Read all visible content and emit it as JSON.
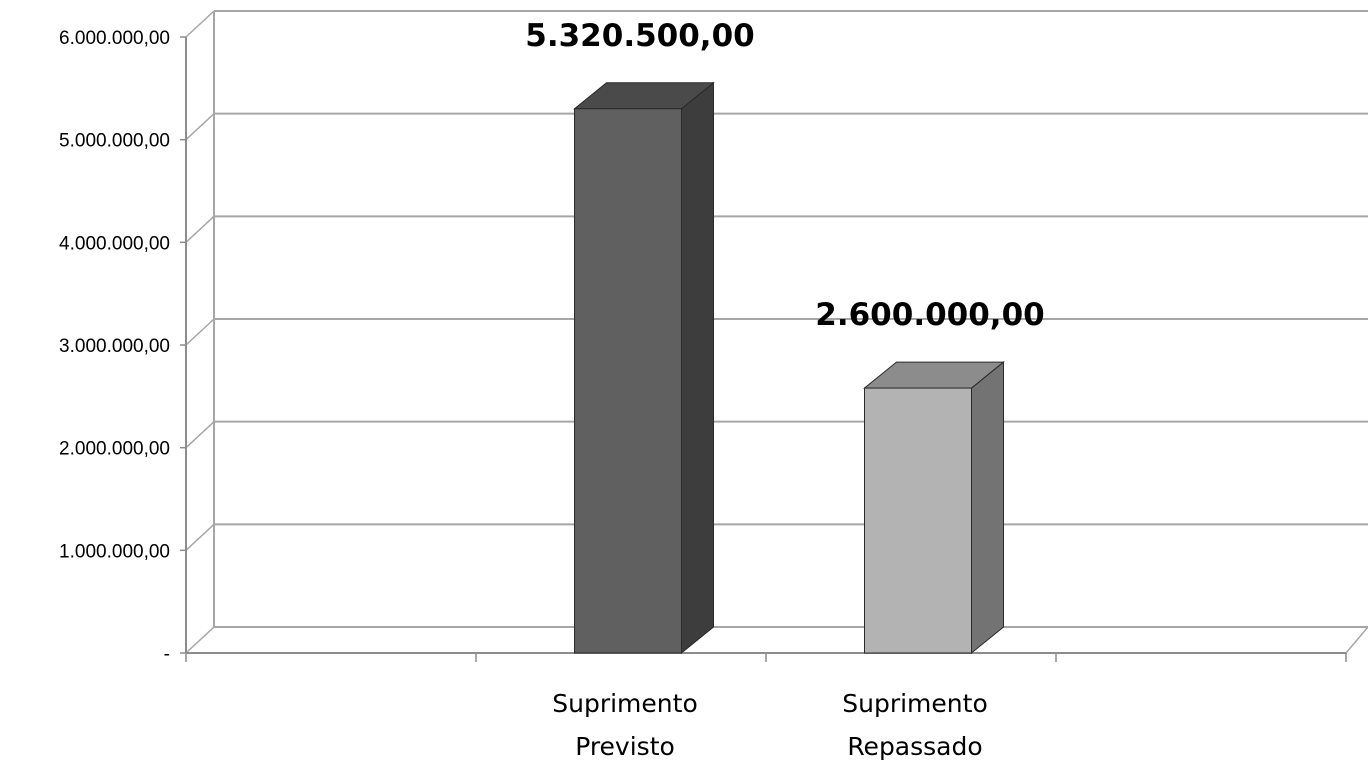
{
  "chart_data": {
    "type": "bar",
    "title": "",
    "xlabel": "",
    "ylabel": "",
    "categories": [
      [
        "Suprimento",
        "Previsto"
      ],
      [
        "Suprimento",
        "Repassado"
      ]
    ],
    "values": [
      5320500,
      2600000
    ],
    "data_labels": [
      "5.320.500,00",
      "2.600.000,00"
    ],
    "ylim": [
      0,
      6000000
    ],
    "yticks": [
      0,
      1000000,
      2000000,
      3000000,
      4000000,
      5000000,
      6000000
    ],
    "ytick_labels": [
      "-",
      "1.000.000,00",
      "2.000.000,00",
      "3.000.000,00",
      "4.000.000,00",
      "5.000.000,00",
      "6.000.000,00"
    ],
    "grid": true,
    "legend": "none",
    "style": "3d-clustered-column",
    "colors": {
      "bar1_front": "#606060",
      "bar1_side": "#3d3d3d",
      "bar1_top": "#4a4a4a",
      "bar2_front": "#b3b3b3",
      "bar2_side": "#737373",
      "bar2_top": "#8c8c8c",
      "gridline": "#a6a6a6",
      "axis": "#8c8c8c"
    }
  }
}
